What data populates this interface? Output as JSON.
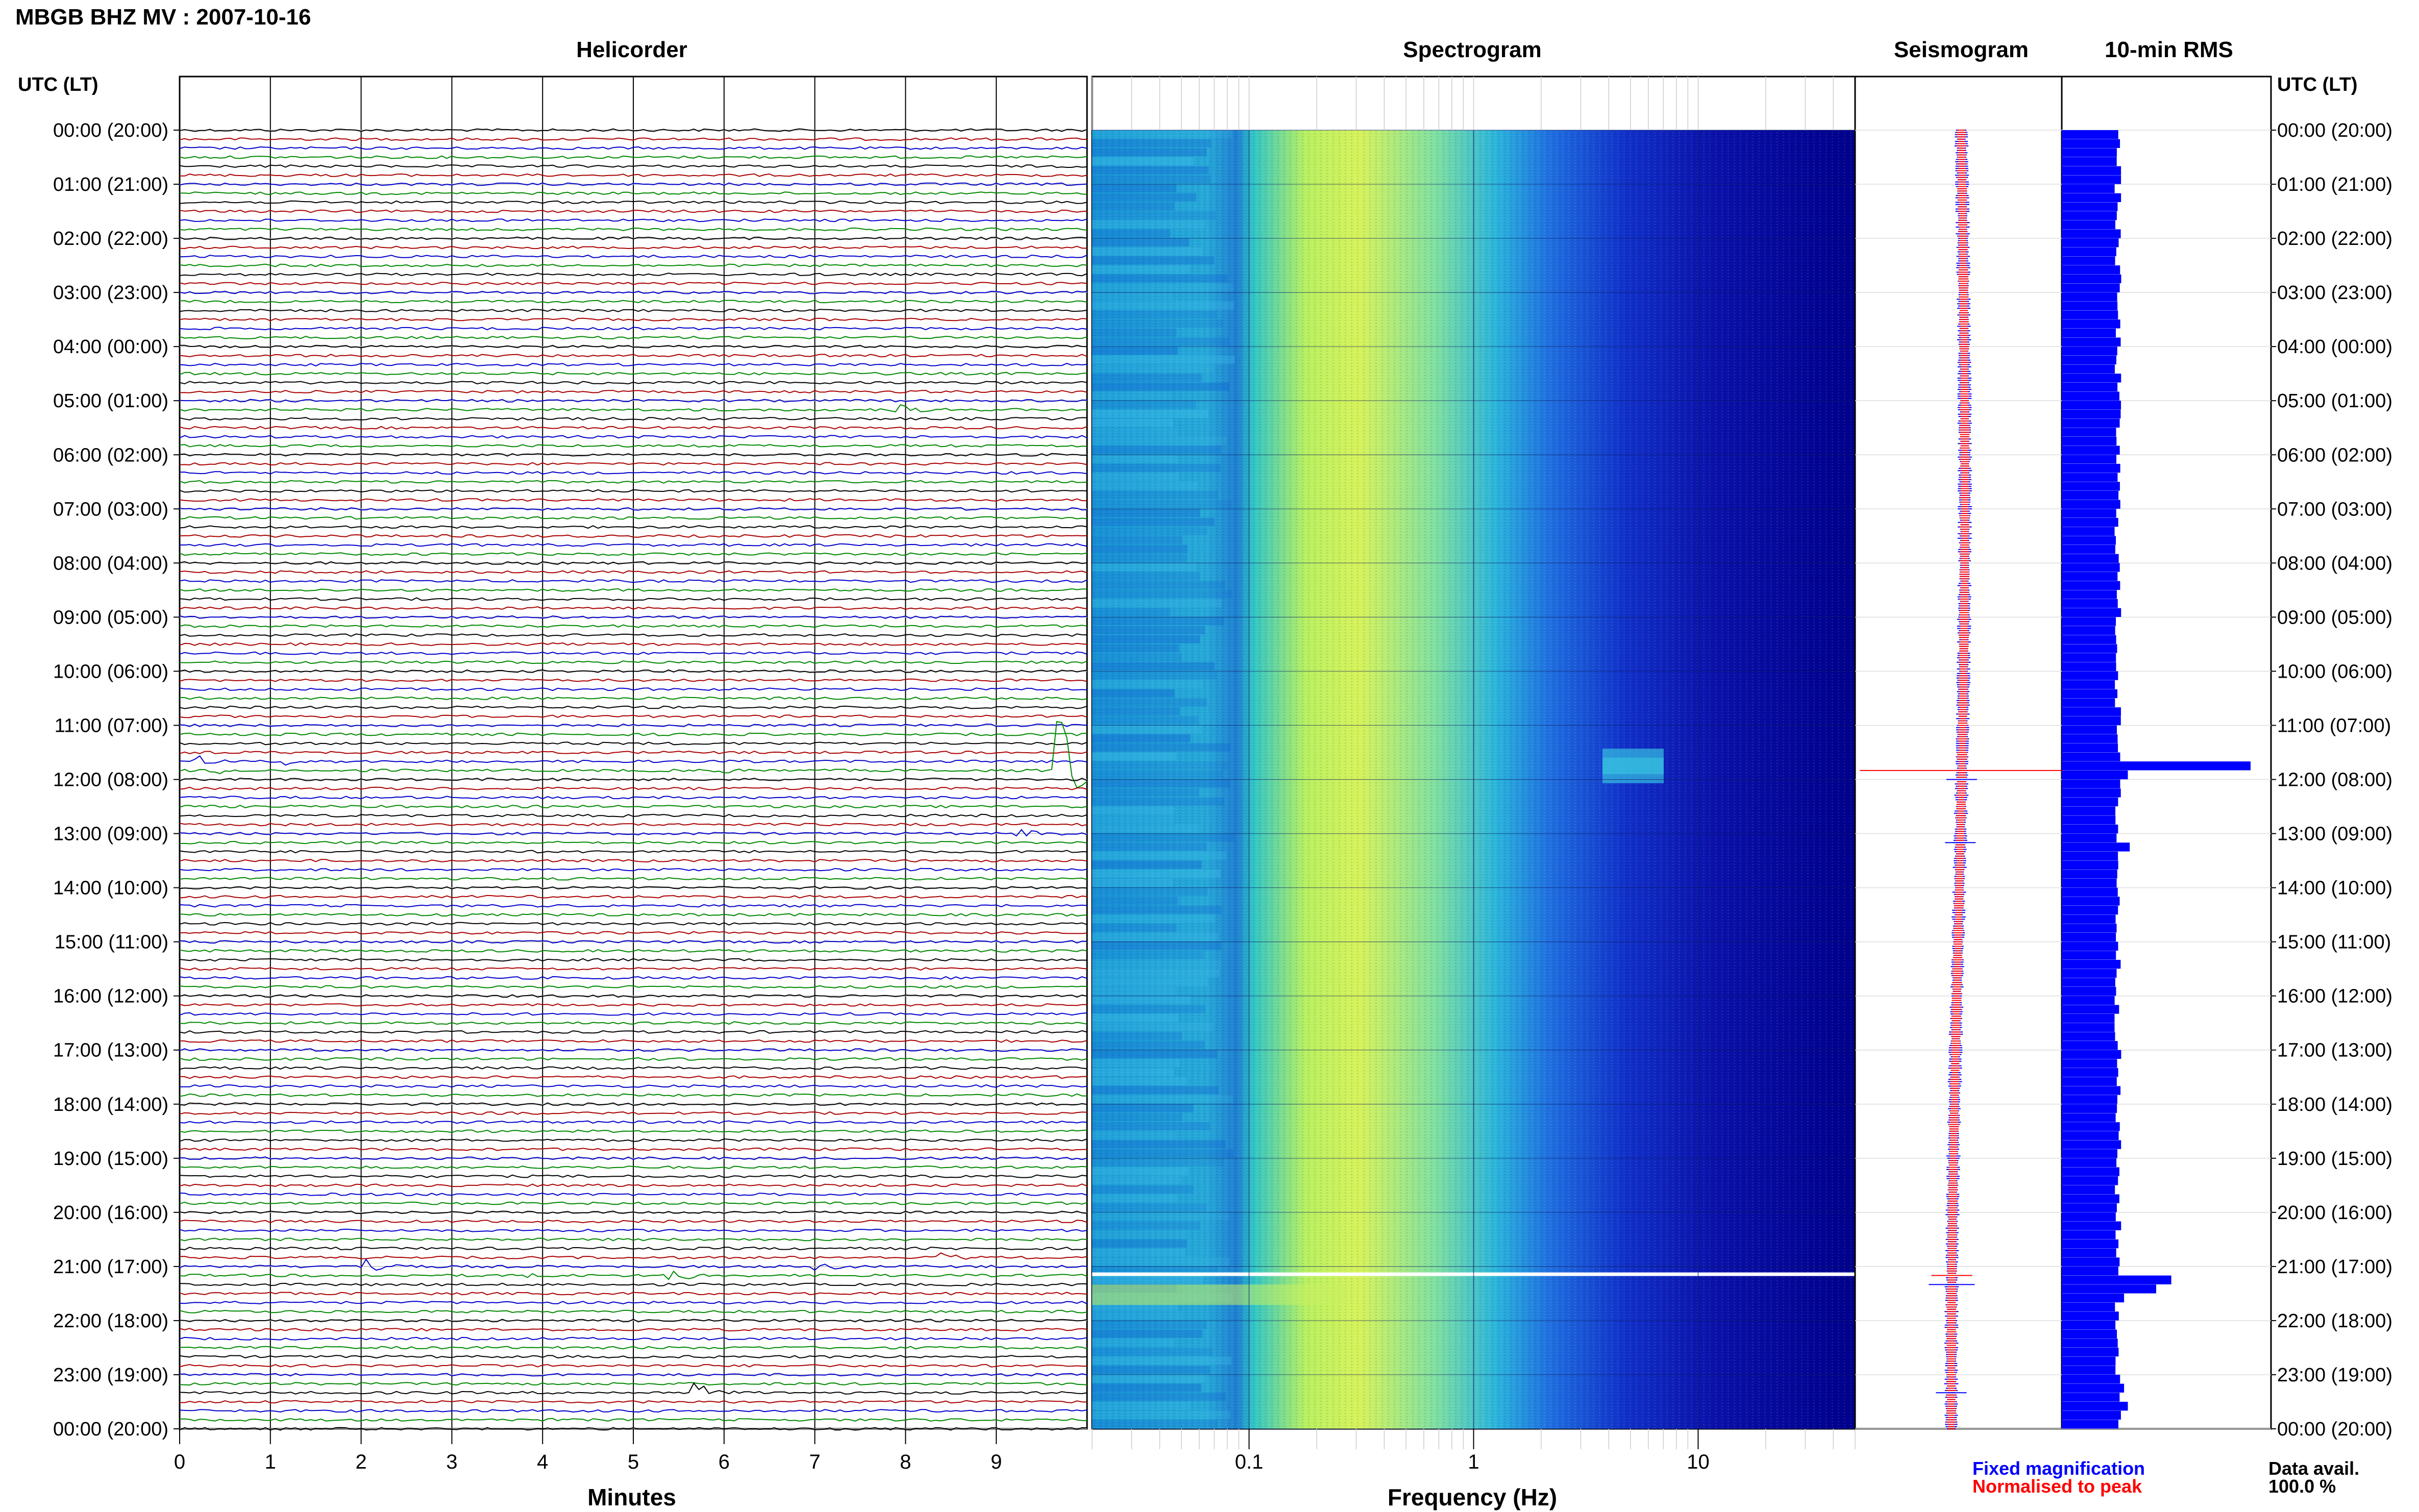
{
  "header": {
    "title": "MBGB BHZ MV : 2007-10-16"
  },
  "panels": {
    "helicorder": "Helicorder",
    "spectrogram": "Spectrogram",
    "seismogram": "Seismogram",
    "rms": "10-min RMS"
  },
  "axes": {
    "utc_label_left": "UTC (LT)",
    "utc_label_right": "UTC (LT)",
    "minutes_label": "Minutes",
    "frequency_label": "Frequency (Hz)"
  },
  "legend": {
    "fixed": "Fixed magnification",
    "normalised": "Normalised to peak",
    "fixed_color": "#0000ff",
    "normalised_color": "#ff0000"
  },
  "availability": {
    "label": "Data avail.",
    "value": "100.0 %"
  },
  "colors": {
    "trace_cycle": [
      "#000000",
      "#aa0000",
      "#0000cc",
      "#008800"
    ],
    "rms_bar": "#0000ff",
    "spec_low": "#00008b",
    "spec_high": "#ffff44"
  },
  "chart_data": {
    "type": "heatmap",
    "title": "MBGB BHZ MV : 2007-10-16",
    "y_hours_utc_lt": [
      "00:00 (20:00)",
      "01:00 (21:00)",
      "02:00 (22:00)",
      "03:00 (23:00)",
      "04:00 (00:00)",
      "05:00 (01:00)",
      "06:00 (02:00)",
      "07:00 (03:00)",
      "08:00 (04:00)",
      "09:00 (05:00)",
      "10:00 (06:00)",
      "11:00 (07:00)",
      "12:00 (08:00)",
      "13:00 (09:00)",
      "14:00 (10:00)",
      "15:00 (11:00)",
      "16:00 (12:00)",
      "17:00 (13:00)",
      "18:00 (14:00)",
      "19:00 (15:00)",
      "20:00 (16:00)",
      "21:00 (17:00)",
      "22:00 (18:00)",
      "23:00 (19:00)",
      "00:00 (20:00)"
    ],
    "helicorder_minutes_ticks": [
      "0",
      "1",
      "2",
      "3",
      "4",
      "5",
      "6",
      "7",
      "8",
      "9"
    ],
    "helicorder_xlim": [
      0,
      10
    ],
    "spectrogram_freq_ticks": [
      {
        "value": 0.1,
        "label": "0.1"
      },
      {
        "value": 1,
        "label": "1"
      },
      {
        "value": 10,
        "label": "10"
      }
    ],
    "spectrogram_xlim_hz": [
      0.02,
      50
    ],
    "spectrogram_scale": "log",
    "row_minutes": 10,
    "rows": 144,
    "events": [
      {
        "row": 31,
        "minute": 7.9,
        "size": 0.5
      },
      {
        "row": 70,
        "minute": 0.2,
        "size": 0.5
      },
      {
        "row": 70,
        "minute": 1.2,
        "size": 0.3
      },
      {
        "row": 71,
        "minute": 0.3,
        "size": 0.5
      },
      {
        "row": 71,
        "minute": 5.9,
        "size": 0.4
      },
      {
        "row": 71,
        "minute": 9.7,
        "size": 5.0
      },
      {
        "row": 78,
        "minute": 9.2,
        "size": 0.8
      },
      {
        "row": 125,
        "minute": 8.4,
        "size": 0.6
      },
      {
        "row": 126,
        "minute": 2.1,
        "size": 0.7
      },
      {
        "row": 126,
        "minute": 7.0,
        "size": 0.4
      },
      {
        "row": 127,
        "minute": 3.7,
        "size": 0.4
      },
      {
        "row": 127,
        "minute": 5.4,
        "size": 0.7
      },
      {
        "row": 140,
        "minute": 5.7,
        "size": 0.8
      }
    ],
    "rms_10min_relative": {
      "baseline": 0.3,
      "peaks": [
        {
          "row": 70,
          "value": 1.0
        },
        {
          "row": 71,
          "value": 0.35
        },
        {
          "row": 79,
          "value": 0.36
        },
        {
          "row": 127,
          "value": 0.58
        },
        {
          "row": 128,
          "value": 0.5
        },
        {
          "row": 129,
          "value": 0.33
        },
        {
          "row": 139,
          "value": 0.33
        },
        {
          "row": 141,
          "value": 0.35
        }
      ]
    }
  }
}
